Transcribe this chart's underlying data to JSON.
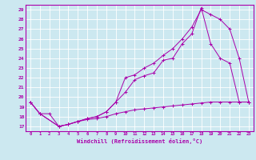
{
  "xlabel": "Windchill (Refroidissement éolien,°C)",
  "background_color": "#cce8f0",
  "line_color": "#aa00aa",
  "grid_color": "#ffffff",
  "ylim": [
    16.5,
    29.5
  ],
  "xlim": [
    -0.5,
    23.5
  ],
  "yticks": [
    17,
    18,
    19,
    20,
    21,
    22,
    23,
    24,
    25,
    26,
    27,
    28,
    29
  ],
  "xticks": [
    0,
    1,
    2,
    3,
    4,
    5,
    6,
    7,
    8,
    9,
    10,
    11,
    12,
    13,
    14,
    15,
    16,
    17,
    18,
    19,
    20,
    21,
    22,
    23
  ],
  "series1_x": [
    0,
    1,
    2,
    3,
    4,
    5,
    6,
    7,
    8,
    9,
    10,
    11,
    12,
    13,
    14,
    15,
    16,
    17,
    18,
    19,
    20,
    21,
    22,
    23
  ],
  "series1_y": [
    19.5,
    18.3,
    18.3,
    17.0,
    17.2,
    17.5,
    17.7,
    17.8,
    18.0,
    18.3,
    18.5,
    18.7,
    18.8,
    18.9,
    19.0,
    19.1,
    19.2,
    19.3,
    19.4,
    19.5,
    19.5,
    19.5,
    19.5,
    19.5
  ],
  "series2_x": [
    0,
    1,
    3,
    4,
    5,
    6,
    7,
    8,
    9,
    10,
    11,
    12,
    13,
    14,
    15,
    16,
    17,
    18,
    19,
    20,
    21,
    22,
    23
  ],
  "series2_y": [
    19.5,
    18.3,
    17.0,
    17.2,
    17.5,
    17.8,
    18.0,
    18.5,
    19.5,
    20.5,
    21.8,
    22.2,
    22.5,
    23.8,
    24.0,
    25.5,
    26.5,
    29.2,
    25.5,
    24.0,
    23.5,
    19.5,
    19.5
  ],
  "series3_x": [
    0,
    1,
    3,
    4,
    5,
    6,
    7,
    8,
    9,
    10,
    11,
    12,
    13,
    14,
    15,
    16,
    17,
    18,
    19,
    20,
    21,
    22,
    23
  ],
  "series3_y": [
    19.5,
    18.3,
    17.0,
    17.2,
    17.5,
    17.8,
    18.0,
    18.5,
    19.5,
    22.0,
    22.3,
    23.0,
    23.5,
    24.3,
    25.0,
    26.0,
    27.2,
    29.0,
    28.5,
    28.0,
    27.0,
    24.0,
    19.5
  ]
}
